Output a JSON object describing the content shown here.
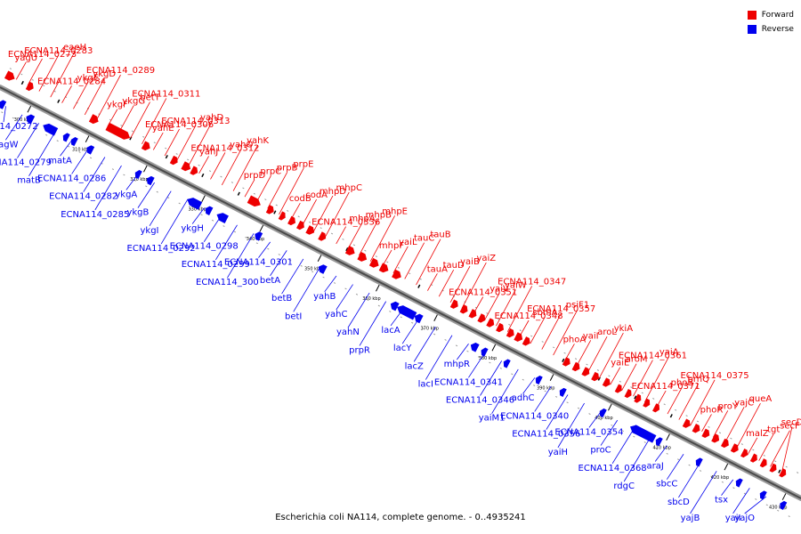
{
  "caption": "Escherichia coli NA114, complete genome. - 0..4935241",
  "legend": [
    {
      "label": "Forward",
      "color": "#ee0000"
    },
    {
      "label": "Reverse",
      "color": "#0000ee"
    }
  ],
  "colors": {
    "forward": "#ee0000",
    "reverse": "#0000ee",
    "axis": "#777777"
  },
  "ticks": [
    "300 kbp",
    "310 kbp",
    "320 kbp",
    "330 kbp",
    "340 kbp",
    "350 kbp",
    "360 kbp",
    "370 kbp",
    "380 kbp",
    "390 kbp",
    "400 kbp",
    "410 kbp",
    "420 kbp",
    "430 kbp"
  ],
  "forward_labels": [
    "yagU",
    "ECNA114_0273",
    "ECNA114_0283",
    "eaeH",
    "ECNA114_0284",
    "ykgE",
    "ykgD",
    "ECNA114_0289",
    "ykgF",
    "ykgG",
    "betT",
    "ECNA114_0311",
    "yahE",
    "ECNA114_0306",
    "ECNA114_0313",
    "yahD",
    "yahJ",
    "ECNA114_0312",
    "yahO",
    "yahK",
    "prpD",
    "prpC",
    "prpB",
    "prpE",
    "codB",
    "codA",
    "mhpD",
    "mhpC",
    "ECNA114_0336",
    "mhpA",
    "mhpB",
    "mhpE",
    "mhpF",
    "yaiL",
    "tauC",
    "tauB",
    "tauA",
    "tauD",
    "yaiB",
    "yaiZ",
    "ECNA114_0351",
    "yaiV",
    "yaiW",
    "ECNA114_0347",
    "ECNA114_0348",
    "sbmA",
    "ECNA114_0357",
    "psiF1",
    "phoA",
    "yaiI",
    "aroL",
    "ykiA",
    "yaiE",
    "aroM",
    "ECNA114_0361",
    "yaiA",
    "ECNA114_0371",
    "phoB",
    "brnQ",
    "ECNA114_0375",
    "phoR",
    "proY",
    "yajC",
    "queA",
    "malZ",
    "tgt",
    "secF",
    "secD"
  ],
  "reverse_labels": [
    "ECNA114_0272",
    "yagW",
    "ECNA114_0279",
    "matB",
    "matA",
    "ECNA114_0286",
    "ECNA114_0282",
    "ECNA114_0285",
    "ykgA",
    "ykgB",
    "ykgI",
    "ECNA114_0292",
    "ykgH",
    "ECNA114_0298",
    "ECNA114_0299",
    "ECNA114_300",
    "ECNA114_0301",
    "betA",
    "betB",
    "betI",
    "yahB",
    "yahC",
    "yahN",
    "prpR",
    "lacA",
    "lacY",
    "lacZ",
    "lacI",
    "mhpR",
    "ECNA114_0341",
    "ECNA114_0346",
    "yaiM1",
    "adhC",
    "ECNA114_0340",
    "ECNA114_0356",
    "yaiH",
    "ECNA114_0354",
    "proC",
    "ECNA114_0368",
    "rdgC",
    "araJ",
    "sbcC",
    "sbcD",
    "yajB",
    "tsx",
    "yajI",
    "yajO"
  ]
}
